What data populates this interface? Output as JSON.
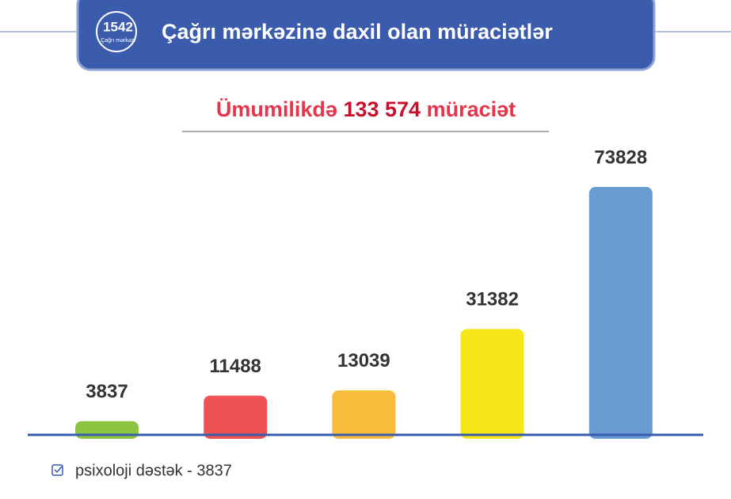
{
  "header": {
    "logo_number": "1542",
    "logo_caption": "Çağrı mərkəzi",
    "title": "Çağrı mərkəzinə daxil olan müraciətlər"
  },
  "chart_data": {
    "type": "bar",
    "subtitle": [
      "Ümumilikdə",
      "133 574",
      "müraciət"
    ],
    "categories": [
      null,
      null,
      null,
      null,
      null
    ],
    "values": [
      3837,
      11488,
      13039,
      31382,
      73828
    ],
    "colors": [
      "#8cc43f",
      "#ee5253",
      "#f8bd3c",
      "#f4e617",
      "#6b9bd3"
    ]
  },
  "legend": [
    "psixoloji dəstək - 3837"
  ]
}
